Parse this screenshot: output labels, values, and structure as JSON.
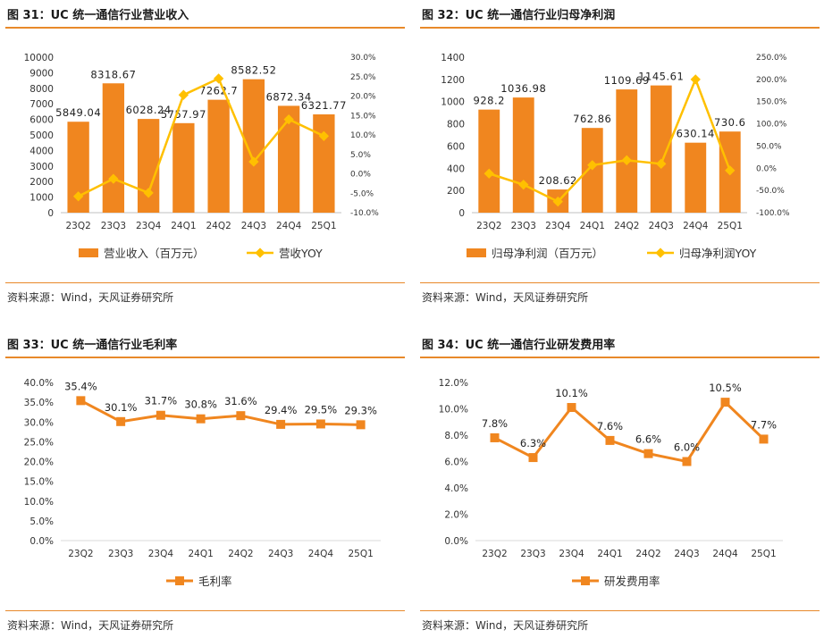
{
  "panels": [
    {
      "title": "图 31：UC 统一通信行业营业收入",
      "source": "资料来源：Wind，天风证券研究所"
    },
    {
      "title": "图 32：UC 统一通信行业归母净利润",
      "source": "资料来源：Wind，天风证券研究所"
    },
    {
      "title": "图 33：UC 统一通信行业毛利率",
      "source": "资料来源：Wind，天风证券研究所"
    },
    {
      "title": "图 34：UC 统一通信行业研发费用率",
      "source": "资料来源：Wind，天风证券研究所"
    }
  ],
  "colors": {
    "bar": "#f0861f",
    "yoy_line": "#ffc000",
    "accent_rule": "#e8892a"
  },
  "chart_data": [
    {
      "type": "bar",
      "categories": [
        "23Q2",
        "23Q3",
        "23Q4",
        "24Q1",
        "24Q2",
        "24Q3",
        "24Q4",
        "25Q1"
      ],
      "series": [
        {
          "name": "营业收入（百万元）",
          "type": "bar",
          "axis": "left",
          "values": [
            5849.04,
            8318.67,
            6028.24,
            5757.97,
            7262.7,
            8582.52,
            6872.34,
            6321.77
          ],
          "labels": [
            "5849.04",
            "8318.67",
            "6028.24",
            "5757.97",
            "7262.7",
            "8582.52",
            "6872.34",
            "6321.77"
          ]
        },
        {
          "name": "营收YOY",
          "type": "line",
          "axis": "right",
          "values": [
            -5.8,
            -1.3,
            -4.9,
            20.3,
            24.5,
            3.1,
            14.0,
            9.7
          ]
        }
      ],
      "ylim": [
        0,
        10000
      ],
      "y_ticks": [
        "0",
        "1000",
        "2000",
        "3000",
        "4000",
        "5000",
        "6000",
        "7000",
        "8000",
        "9000",
        "10000"
      ],
      "y2lim": [
        -10,
        30
      ],
      "y2_ticks": [
        "-10.0%",
        "-5.0%",
        "0.0%",
        "5.0%",
        "10.0%",
        "15.0%",
        "20.0%",
        "25.0%",
        "30.0%"
      ],
      "legend_position": "bottom",
      "grid": false
    },
    {
      "type": "bar",
      "categories": [
        "23Q2",
        "23Q3",
        "23Q4",
        "24Q1",
        "24Q2",
        "24Q3",
        "24Q4",
        "25Q1"
      ],
      "series": [
        {
          "name": "归母净利润（百万元）",
          "type": "bar",
          "axis": "left",
          "values": [
            928.2,
            1036.98,
            208.62,
            762.86,
            1109.69,
            1145.61,
            630.14,
            730.6
          ],
          "labels": [
            "928.2",
            "1036.98",
            "208.62",
            "762.86",
            "1109.69",
            "1145.61",
            "630.14",
            "730.6"
          ]
        },
        {
          "name": "归母净利润YOY",
          "type": "line",
          "axis": "right",
          "values": [
            -12.0,
            -37.0,
            -75.0,
            7.0,
            18.0,
            10.0,
            200.0,
            -5.0
          ]
        }
      ],
      "ylim": [
        0,
        1400
      ],
      "y_ticks": [
        "0",
        "200",
        "400",
        "600",
        "800",
        "1000",
        "1200",
        "1400"
      ],
      "y2lim": [
        -100,
        250
      ],
      "y2_ticks": [
        "-100.0%",
        "-50.0%",
        "0.0%",
        "50.0%",
        "100.0%",
        "150.0%",
        "200.0%",
        "250.0%"
      ],
      "legend_position": "bottom",
      "grid": false
    },
    {
      "type": "line",
      "categories": [
        "23Q2",
        "23Q3",
        "23Q4",
        "24Q1",
        "24Q2",
        "24Q3",
        "24Q4",
        "25Q1"
      ],
      "series": [
        {
          "name": "毛利率",
          "values": [
            35.4,
            30.1,
            31.7,
            30.8,
            31.6,
            29.4,
            29.5,
            29.3
          ],
          "labels": [
            "35.4%",
            "30.1%",
            "31.7%",
            "30.8%",
            "31.6%",
            "29.4%",
            "29.5%",
            "29.3%"
          ]
        }
      ],
      "ylim": [
        0,
        40
      ],
      "y_ticks": [
        "0.0%",
        "5.0%",
        "10.0%",
        "15.0%",
        "20.0%",
        "25.0%",
        "30.0%",
        "35.0%",
        "40.0%"
      ],
      "legend_position": "bottom",
      "grid": false
    },
    {
      "type": "line",
      "categories": [
        "23Q2",
        "23Q3",
        "23Q4",
        "24Q1",
        "24Q2",
        "24Q3",
        "24Q4",
        "25Q1"
      ],
      "series": [
        {
          "name": "研发费用率",
          "values": [
            7.8,
            6.3,
            10.1,
            7.6,
            6.6,
            6.0,
            10.5,
            7.7
          ],
          "labels": [
            "7.8%",
            "6.3%",
            "10.1%",
            "7.6%",
            "6.6%",
            "6.0%",
            "10.5%",
            "7.7%"
          ]
        }
      ],
      "ylim": [
        0,
        12
      ],
      "y_ticks": [
        "0.0%",
        "2.0%",
        "4.0%",
        "6.0%",
        "8.0%",
        "10.0%",
        "12.0%"
      ],
      "legend_position": "bottom",
      "grid": false
    }
  ]
}
